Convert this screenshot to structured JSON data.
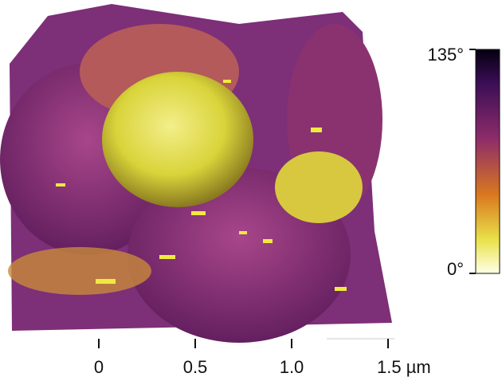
{
  "colorbar": {
    "ticks": [
      {
        "value": 135,
        "label": "135°"
      },
      {
        "value": 0,
        "label": "0°"
      }
    ],
    "lim": [
      0,
      135
    ]
  },
  "x_axis": {
    "ticks": [
      {
        "value": 0,
        "label": "0"
      },
      {
        "value": 0.5,
        "label": "0.5"
      },
      {
        "value": 1.0,
        "label": "1.0"
      },
      {
        "value": 1.5,
        "label": "1.5 µm"
      }
    ],
    "lim": [
      0,
      1.5
    ]
  }
}
